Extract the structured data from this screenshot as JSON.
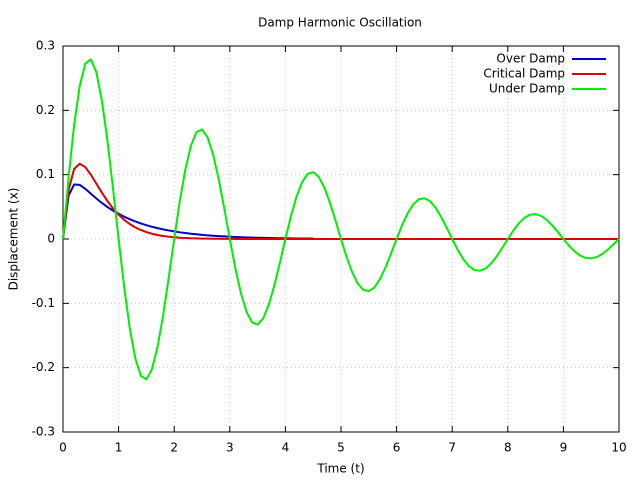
{
  "chart_data": {
    "type": "line",
    "title": "Damp Harmonic Oscillation",
    "x_label": "Time (t)",
    "y_label": "Displacement (x)",
    "xlim": [
      0,
      10
    ],
    "ylim": [
      -0.3,
      0.3
    ],
    "xticks": [
      0,
      1,
      2,
      3,
      4,
      5,
      6,
      7,
      8,
      9,
      10
    ],
    "yticks": [
      -0.3,
      -0.2,
      -0.1,
      0,
      0.1,
      0.2,
      0.3
    ],
    "grid": true,
    "legend": "top-right",
    "x": [
      0,
      0.1,
      0.2,
      0.3,
      0.4,
      0.5,
      0.6,
      0.7,
      0.8,
      0.9,
      1,
      1.1,
      1.2,
      1.3,
      1.4,
      1.5,
      1.6,
      1.7,
      1.8,
      1.9,
      2,
      2.1,
      2.2,
      2.3,
      2.4,
      2.5,
      2.6,
      2.7,
      2.8,
      2.9,
      3,
      3.1,
      3.2,
      3.3,
      3.4,
      3.5,
      3.6,
      3.7,
      3.8,
      3.9,
      4,
      4.1,
      4.2,
      4.3,
      4.4,
      4.5,
      4.6,
      4.7,
      4.8,
      4.9,
      5,
      5.1,
      5.2,
      5.3,
      5.4,
      5.5,
      5.6,
      5.7,
      5.8,
      5.9,
      6,
      6.1,
      6.2,
      6.3,
      6.4,
      6.5,
      6.6,
      6.7,
      6.8,
      6.9,
      7,
      7.1,
      7.2,
      7.3,
      7.4,
      7.5,
      7.6,
      7.7,
      7.8,
      7.9,
      8,
      8.1,
      8.2,
      8.3,
      8.4,
      8.5,
      8.6,
      8.7,
      8.8,
      8.9,
      9,
      9.1,
      9.2,
      9.3,
      9.4,
      9.5,
      9.6,
      9.7,
      9.8,
      9.9,
      10
    ],
    "series": [
      {
        "name": "Over Damp",
        "color": "#0000cc",
        "values": [
          0,
          0.0675,
          0.0847,
          0.0842,
          0.0781,
          0.0705,
          0.063,
          0.056,
          0.0497,
          0.0441,
          0.0392,
          0.0347,
          0.0308,
          0.0273,
          0.0242,
          0.0215,
          0.019,
          0.0169,
          0.015,
          0.0133,
          0.0118,
          0.0104,
          0.0093,
          0.0082,
          0.0073,
          0.0065,
          0.0057,
          0.0051,
          0.0045,
          0.004,
          0.0036,
          0.0032,
          0.0028,
          0.0025,
          0.0022,
          0.002,
          0.0017,
          0.0015,
          0.0014,
          0.0012,
          0.0011,
          0.001,
          0.0008,
          0.0007,
          0.0007,
          0.0006,
          null,
          null,
          null,
          null,
          null,
          null,
          null,
          null,
          null,
          null,
          null,
          null,
          null,
          null,
          null,
          null,
          null,
          null,
          null,
          null,
          null,
          null,
          null,
          null,
          null,
          null,
          null,
          null,
          null,
          null,
          null,
          null,
          null,
          null,
          null,
          null,
          null,
          null,
          null,
          null,
          null,
          null,
          null,
          null,
          null,
          null,
          null,
          null,
          null,
          null,
          null,
          null,
          null,
          null,
          null
        ]
      },
      {
        "name": "Critical Damp",
        "color": "#dd0000",
        "values": [
          0,
          0.076,
          0.1088,
          0.117,
          0.1118,
          0.1001,
          0.0861,
          0.072,
          0.0589,
          0.0475,
          0.0378,
          0.0298,
          0.0233,
          0.0181,
          0.014,
          0.0107,
          0.0082,
          0.0062,
          0.0047,
          0.0036,
          0.0027,
          0.002,
          0.0015,
          0.0011,
          0.0009,
          0.0006,
          0.0005,
          0.0004,
          0.0003,
          0.0002,
          0.0002,
          0.0001,
          0.0001,
          0.0001,
          0,
          0,
          0,
          0,
          0,
          0,
          0,
          0,
          0,
          0,
          0,
          0,
          0,
          0,
          0,
          0,
          0,
          0,
          0,
          0,
          0,
          0,
          0,
          0,
          0,
          0,
          0,
          0,
          0,
          0,
          0,
          0,
          0,
          0,
          0,
          0,
          0,
          0,
          0,
          0,
          0,
          0,
          0,
          0,
          0,
          0,
          0,
          0,
          0,
          0,
          0,
          0,
          0,
          0,
          0,
          0,
          0,
          0,
          0,
          0,
          0,
          0,
          0,
          0,
          0,
          0,
          0
        ]
      },
      {
        "name": "Under Damp",
        "color": "#00ee00",
        "values": [
          0,
          0.0953,
          0.1769,
          0.2374,
          0.2723,
          0.2793,
          0.2591,
          0.215,
          0.1525,
          0.0782,
          0,
          -0.0744,
          -0.1382,
          -0.1854,
          -0.2127,
          -0.2181,
          -0.2024,
          -0.1679,
          -0.1191,
          -0.0611,
          0,
          0.0581,
          0.1079,
          0.1448,
          0.1661,
          0.1703,
          0.1581,
          0.1311,
          0.093,
          0.0477,
          0,
          -0.0454,
          -0.0843,
          -0.1131,
          -0.1297,
          -0.133,
          -0.1235,
          -0.1024,
          -0.0726,
          -0.0373,
          0,
          0.0355,
          0.0658,
          0.0883,
          0.1013,
          0.1039,
          0.0965,
          0.08,
          0.0567,
          0.0291,
          0,
          -0.0277,
          -0.0514,
          -0.069,
          -0.0791,
          -0.0811,
          -0.0754,
          -0.0625,
          -0.0443,
          -0.0227,
          0,
          0.0216,
          0.0401,
          0.0539,
          0.0618,
          0.0633,
          0.0589,
          0.0488,
          0.0346,
          0.0177,
          0,
          -0.0169,
          -0.0313,
          -0.0421,
          -0.0483,
          -0.0494,
          -0.046,
          -0.0381,
          -0.027,
          -0.0138,
          0,
          0.0132,
          0.0244,
          0.0329,
          0.0377,
          0.0386,
          0.0359,
          0.0298,
          0.0211,
          0.0108,
          0,
          -0.0103,
          -0.0191,
          -0.0257,
          -0.0294,
          -0.0301,
          -0.028,
          -0.0233,
          -0.0165,
          -0.0084,
          0
        ]
      }
    ]
  }
}
